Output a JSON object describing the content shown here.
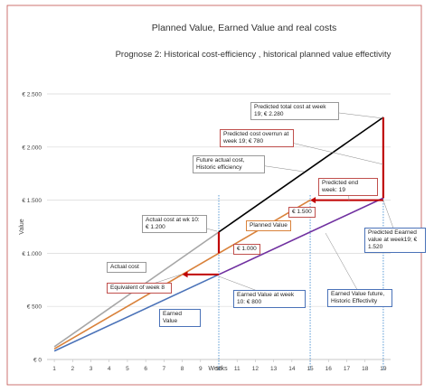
{
  "chart_data": {
    "type": "line",
    "title": "Planned Value,  Earned Value and real costs",
    "subtitle": "Prognose 2: Historical cost-efficiency , historical planned value effectivity",
    "y_label": "Value",
    "x_label": "Weeks",
    "xlim": [
      0.6,
      19.4
    ],
    "xticks": [
      1,
      2,
      3,
      4,
      5,
      6,
      7,
      8,
      9,
      10,
      11,
      12,
      13,
      14,
      15,
      16,
      17,
      18,
      19
    ],
    "ylim": [
      0,
      2500
    ],
    "yticks": [
      {
        "value": 0,
        "label": "€ 0"
      },
      {
        "value": 500,
        "label": "€ 500"
      },
      {
        "value": 1000,
        "label": "€ 1.000"
      },
      {
        "value": 1500,
        "label": "€ 1.500"
      },
      {
        "value": 2000,
        "label": "€ 2.000"
      },
      {
        "value": 2500,
        "label": "€ 2.500"
      }
    ],
    "grid": true,
    "series": [
      {
        "name": "Actual cost",
        "color": "#a6a6a6",
        "x": [
          1,
          10
        ],
        "values": [
          120,
          1200
        ]
      },
      {
        "name": "Planned Value",
        "color": "#d9823b",
        "x": [
          1,
          15
        ],
        "values": [
          100,
          1500
        ]
      },
      {
        "name": "Earned Value",
        "color": "#4a72b8",
        "x": [
          1,
          10
        ],
        "values": [
          80,
          800
        ]
      },
      {
        "name": "Future actual cost, Historic efficiency",
        "color": "#000000",
        "x": [
          10,
          19
        ],
        "values": [
          1200,
          2280
        ]
      },
      {
        "name": "Earned Value future, Historic Effectivity",
        "color": "#7030a0",
        "x": [
          10,
          19
        ],
        "values": [
          800,
          1520
        ]
      }
    ],
    "indicators": [
      {
        "type": "vline",
        "x": 10,
        "from": 1000,
        "to": 1200
      },
      {
        "type": "vline",
        "x": 19,
        "from": 1520,
        "to": 2280
      },
      {
        "type": "arrow",
        "y": 800,
        "from": 10,
        "to": 8
      },
      {
        "type": "arrow",
        "y": 1500,
        "from": 19,
        "to": 15
      }
    ],
    "guides": [
      10,
      15,
      19
    ],
    "annotations": [
      "Predicted total cost at week 19; € 2.280",
      "Predicted cost overrun at week 19; € 780",
      "Predicted end week: 19",
      "Actual cost at wk 10: € 1.200",
      "€ 1.000",
      "€ 1.500",
      "Predicted Eearned value at week19; € 1.520",
      "Equivalent of week 8",
      "Earned Value at week 10: € 800"
    ]
  }
}
